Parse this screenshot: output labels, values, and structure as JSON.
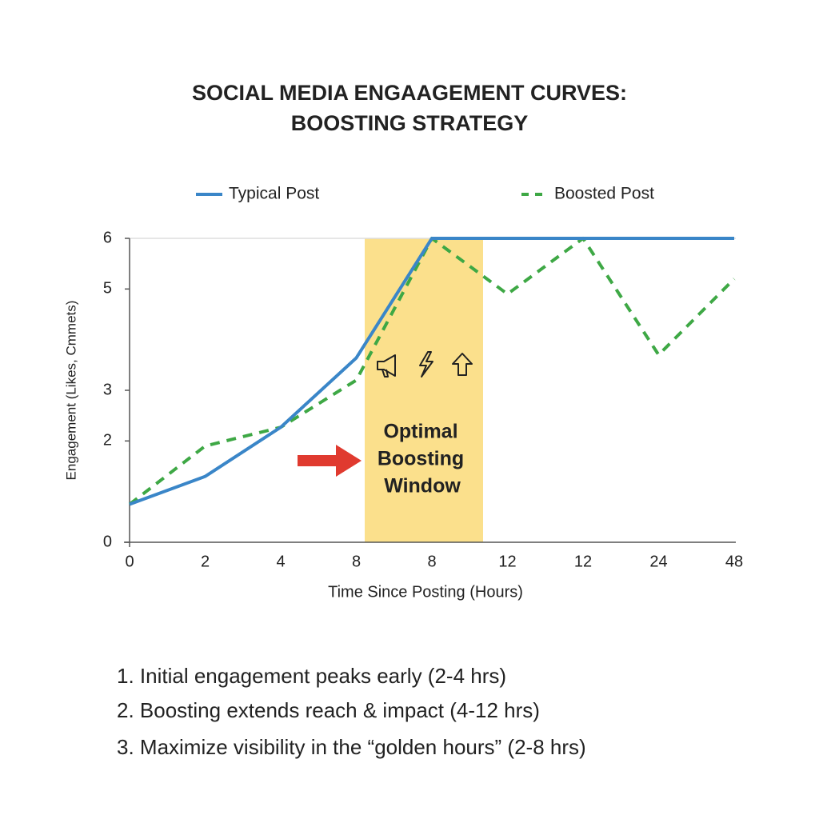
{
  "chart_data": {
    "type": "line",
    "title": [
      "SOCIAL MEDIA ENGAAGEMENT CURVES:",
      "BOOSTING STRATEGY"
    ],
    "x_label": "Time Since Posting (Hours)",
    "y_label": "Engagement (Likes, Cmmets)",
    "categories": [
      "0",
      "2",
      "4",
      "8",
      "8",
      "12",
      "12",
      "24",
      "48"
    ],
    "series": [
      {
        "name": "Typical Post",
        "color": "#3a86c8",
        "dashed": false,
        "values": [
          0.75,
          1.3,
          2.27,
          3.64,
          6,
          6,
          6,
          6,
          6
        ]
      },
      {
        "name": "Boosted Post",
        "color": "#3ea845",
        "dashed": true,
        "values": [
          0.75,
          1.9,
          2.27,
          3.2,
          6,
          4.9,
          6,
          3.7,
          5.2
        ]
      }
    ],
    "ylim": [
      0,
      6
    ],
    "yticks": [
      0,
      2,
      3,
      5,
      6
    ],
    "grid": false,
    "annotation": [
      "Optimal",
      "Boosting",
      "Window"
    ],
    "notes": [
      "1.  Initial engagement peaks early (2-4 hrs)",
      "2.  Boosting extends reach & impact (4-12 hrs)",
      "3.  Maximize visibility in the “golden hours” (2-8 hrs)"
    ]
  }
}
